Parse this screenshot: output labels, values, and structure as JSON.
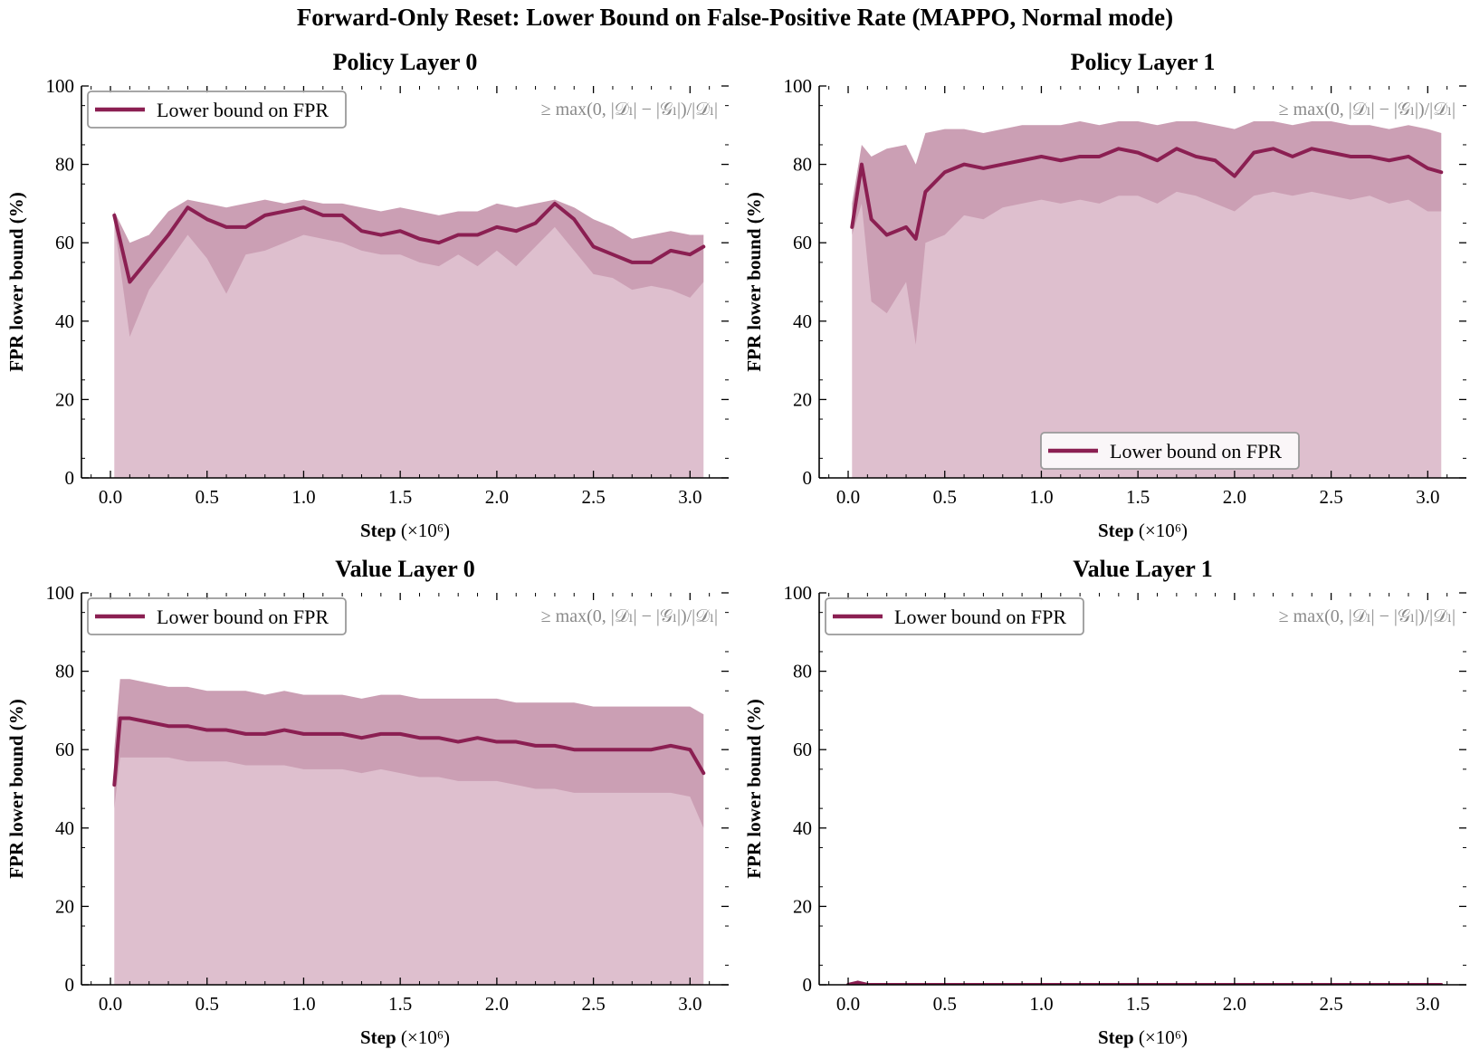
{
  "figure": {
    "suptitle": "Forward-Only Reset: Lower Bound on False-Positive Rate (MAPPO, Normal mode)"
  },
  "colors": {
    "line": "#8b1f52",
    "outer_band": "#c894ad",
    "inner_band": "#a86585",
    "legend_border": "#9a9a9a",
    "annotation": "#8a8a8a"
  },
  "common": {
    "xlabel_bold": "Step",
    "xlabel_unit": "(×10⁶)",
    "ylabel": "FPR lower bound (%)",
    "legend_label": "Lower bound on FPR",
    "annotation": "≥ max(0, |𝒟ₗ| − |𝒢ₗ|)/|𝒟ₗ|",
    "xticks": [
      "0.0",
      "0.5",
      "1.0",
      "1.5",
      "2.0",
      "2.5",
      "3.0"
    ],
    "yticks": [
      "0",
      "20",
      "40",
      "60",
      "80",
      "100"
    ],
    "xlim": [
      -0.15,
      3.2
    ],
    "ylim": [
      0,
      100
    ]
  },
  "chart_data": [
    {
      "type": "line",
      "title": "Policy Layer 0",
      "legend_position": "upper left",
      "x": [
        0.02,
        0.1,
        0.2,
        0.3,
        0.4,
        0.5,
        0.6,
        0.7,
        0.8,
        0.9,
        1.0,
        1.1,
        1.2,
        1.3,
        1.4,
        1.5,
        1.6,
        1.7,
        1.8,
        1.9,
        2.0,
        2.1,
        2.2,
        2.3,
        2.4,
        2.5,
        2.6,
        2.7,
        2.8,
        2.9,
        3.0,
        3.07
      ],
      "y": [
        67,
        50,
        56,
        62,
        69,
        66,
        64,
        64,
        67,
        68,
        69,
        67,
        67,
        63,
        62,
        63,
        61,
        60,
        62,
        62,
        64,
        63,
        65,
        70,
        66,
        59,
        57,
        55,
        55,
        58,
        57,
        59
      ],
      "band_min": [
        65,
        36,
        48,
        55,
        62,
        56,
        47,
        57,
        58,
        60,
        62,
        61,
        60,
        58,
        57,
        57,
        55,
        54,
        57,
        54,
        58,
        54,
        59,
        64,
        58,
        52,
        51,
        48,
        49,
        48,
        46,
        50
      ],
      "band_max": [
        68,
        60,
        62,
        68,
        71,
        70,
        69,
        70,
        71,
        70,
        71,
        70,
        70,
        69,
        68,
        69,
        68,
        67,
        68,
        68,
        70,
        69,
        70,
        71,
        69,
        66,
        64,
        61,
        62,
        63,
        62,
        62
      ],
      "band_floor": 0
    },
    {
      "type": "line",
      "title": "Policy Layer 1",
      "legend_position": "lower center",
      "x": [
        0.02,
        0.07,
        0.12,
        0.2,
        0.3,
        0.35,
        0.4,
        0.5,
        0.6,
        0.7,
        0.8,
        0.9,
        1.0,
        1.1,
        1.2,
        1.3,
        1.4,
        1.5,
        1.6,
        1.7,
        1.8,
        1.9,
        2.0,
        2.1,
        2.2,
        2.3,
        2.4,
        2.5,
        2.6,
        2.7,
        2.8,
        2.9,
        3.0,
        3.07
      ],
      "y": [
        64,
        80,
        66,
        62,
        64,
        61,
        73,
        78,
        80,
        79,
        80,
        81,
        82,
        81,
        82,
        82,
        84,
        83,
        81,
        84,
        82,
        81,
        77,
        83,
        84,
        82,
        84,
        83,
        82,
        82,
        81,
        82,
        79,
        78
      ],
      "band_min": [
        62,
        70,
        45,
        42,
        50,
        34,
        60,
        62,
        67,
        66,
        69,
        70,
        71,
        70,
        71,
        70,
        72,
        72,
        70,
        73,
        72,
        70,
        68,
        72,
        73,
        72,
        73,
        72,
        71,
        72,
        70,
        71,
        68,
        68
      ],
      "band_max": [
        70,
        85,
        82,
        84,
        85,
        80,
        88,
        89,
        89,
        88,
        89,
        90,
        90,
        90,
        91,
        90,
        91,
        91,
        90,
        91,
        91,
        90,
        89,
        91,
        91,
        90,
        91,
        91,
        90,
        90,
        89,
        90,
        89,
        88
      ],
      "band_floor": 0
    },
    {
      "type": "line",
      "title": "Value Layer 0",
      "legend_position": "upper left",
      "x": [
        0.02,
        0.05,
        0.1,
        0.2,
        0.3,
        0.4,
        0.5,
        0.6,
        0.7,
        0.8,
        0.9,
        1.0,
        1.1,
        1.2,
        1.3,
        1.4,
        1.5,
        1.6,
        1.7,
        1.8,
        1.9,
        2.0,
        2.1,
        2.2,
        2.3,
        2.4,
        2.5,
        2.6,
        2.7,
        2.8,
        2.9,
        3.0,
        3.07
      ],
      "y": [
        51,
        68,
        68,
        67,
        66,
        66,
        65,
        65,
        64,
        64,
        65,
        64,
        64,
        64,
        63,
        64,
        64,
        63,
        63,
        62,
        63,
        62,
        62,
        61,
        61,
        60,
        60,
        60,
        60,
        60,
        61,
        60,
        54
      ],
      "band_min": [
        45,
        58,
        58,
        58,
        58,
        57,
        57,
        57,
        56,
        56,
        56,
        55,
        55,
        55,
        54,
        55,
        54,
        53,
        53,
        52,
        52,
        52,
        51,
        50,
        50,
        49,
        49,
        49,
        49,
        49,
        49,
        48,
        40
      ],
      "band_max": [
        60,
        78,
        78,
        77,
        76,
        76,
        75,
        75,
        75,
        74,
        75,
        74,
        74,
        74,
        73,
        74,
        74,
        73,
        73,
        73,
        73,
        73,
        72,
        72,
        72,
        72,
        71,
        71,
        71,
        71,
        71,
        71,
        69
      ],
      "band_floor": 0
    },
    {
      "type": "line",
      "title": "Value Layer 1",
      "legend_position": "upper left",
      "x": [
        0.0,
        0.05,
        0.1,
        0.5,
        1.0,
        1.5,
        2.0,
        2.5,
        3.0,
        3.07
      ],
      "y": [
        0,
        0.6,
        0,
        0,
        0,
        0,
        0,
        0,
        0,
        0
      ],
      "band_min": [
        0,
        0,
        0,
        0,
        0,
        0,
        0,
        0,
        0,
        0
      ],
      "band_max": [
        0,
        0.8,
        0,
        0,
        0,
        0,
        0,
        0,
        0,
        0
      ],
      "band_floor": 0
    }
  ]
}
